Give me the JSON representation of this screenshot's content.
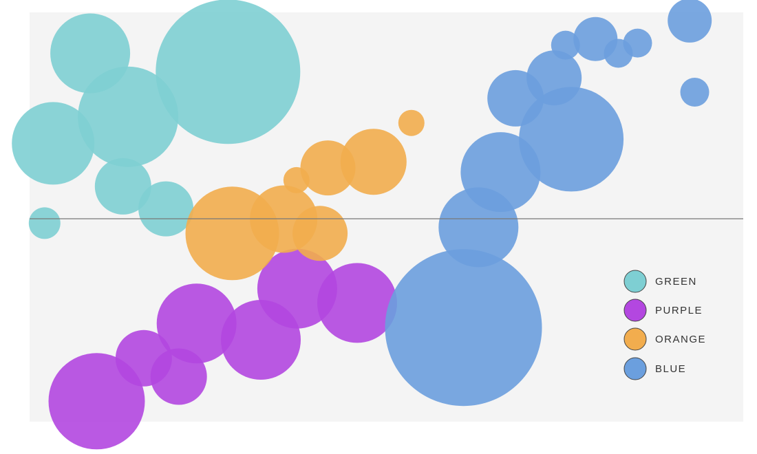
{
  "chart_data": {
    "type": "scatter",
    "title": "",
    "xlabel": "",
    "ylabel": "",
    "xlim": [
      0,
      100
    ],
    "ylim": [
      -100,
      100
    ],
    "reference_line": {
      "y": 0
    },
    "grid": false,
    "legend_position": "right",
    "series": [
      {
        "name": "GREEN",
        "color": "#7ecfd3",
        "points": [
          {
            "x": 8.5,
            "y": 80,
            "size": 58
          },
          {
            "x": 27.8,
            "y": 71,
            "size": 105
          },
          {
            "x": 13.8,
            "y": 49,
            "size": 73
          },
          {
            "x": 3.3,
            "y": 36,
            "size": 60
          },
          {
            "x": 13.1,
            "y": 15,
            "size": 41
          },
          {
            "x": 19.1,
            "y": 4,
            "size": 40
          },
          {
            "x": 2.1,
            "y": -3,
            "size": 23
          }
        ]
      },
      {
        "name": "PURPLE",
        "color": "#b347e0",
        "points": [
          {
            "x": 9.4,
            "y": -90,
            "size": 70
          },
          {
            "x": 16.0,
            "y": -69,
            "size": 41
          },
          {
            "x": 20.9,
            "y": -78,
            "size": 41
          },
          {
            "x": 23.4,
            "y": -52,
            "size": 58
          },
          {
            "x": 32.4,
            "y": -60,
            "size": 58
          },
          {
            "x": 37.5,
            "y": -35,
            "size": 58
          },
          {
            "x": 45.9,
            "y": -42,
            "size": 58
          }
        ]
      },
      {
        "name": "ORANGE",
        "color": "#f2ad4e",
        "points": [
          {
            "x": 28.4,
            "y": -8,
            "size": 68
          },
          {
            "x": 35.6,
            "y": -1,
            "size": 49
          },
          {
            "x": 40.7,
            "y": -8,
            "size": 40
          },
          {
            "x": 37.4,
            "y": 18,
            "size": 19
          },
          {
            "x": 41.8,
            "y": 24,
            "size": 40
          },
          {
            "x": 48.2,
            "y": 27,
            "size": 48
          },
          {
            "x": 53.5,
            "y": 46,
            "size": 19
          }
        ]
      },
      {
        "name": "BLUE",
        "color": "#6b9fde",
        "points": [
          {
            "x": 60.8,
            "y": -54,
            "size": 114
          },
          {
            "x": 62.9,
            "y": -5,
            "size": 58
          },
          {
            "x": 66.0,
            "y": 22,
            "size": 58
          },
          {
            "x": 75.9,
            "y": 38,
            "size": 76
          },
          {
            "x": 68.1,
            "y": 58,
            "size": 41
          },
          {
            "x": 73.5,
            "y": 68,
            "size": 40
          },
          {
            "x": 75.1,
            "y": 84,
            "size": 21
          },
          {
            "x": 79.3,
            "y": 87,
            "size": 32
          },
          {
            "x": 82.5,
            "y": 80,
            "size": 21
          },
          {
            "x": 85.2,
            "y": 85,
            "size": 21
          },
          {
            "x": 92.5,
            "y": 96,
            "size": 32
          },
          {
            "x": 93.2,
            "y": 61,
            "size": 21
          }
        ]
      }
    ]
  }
}
